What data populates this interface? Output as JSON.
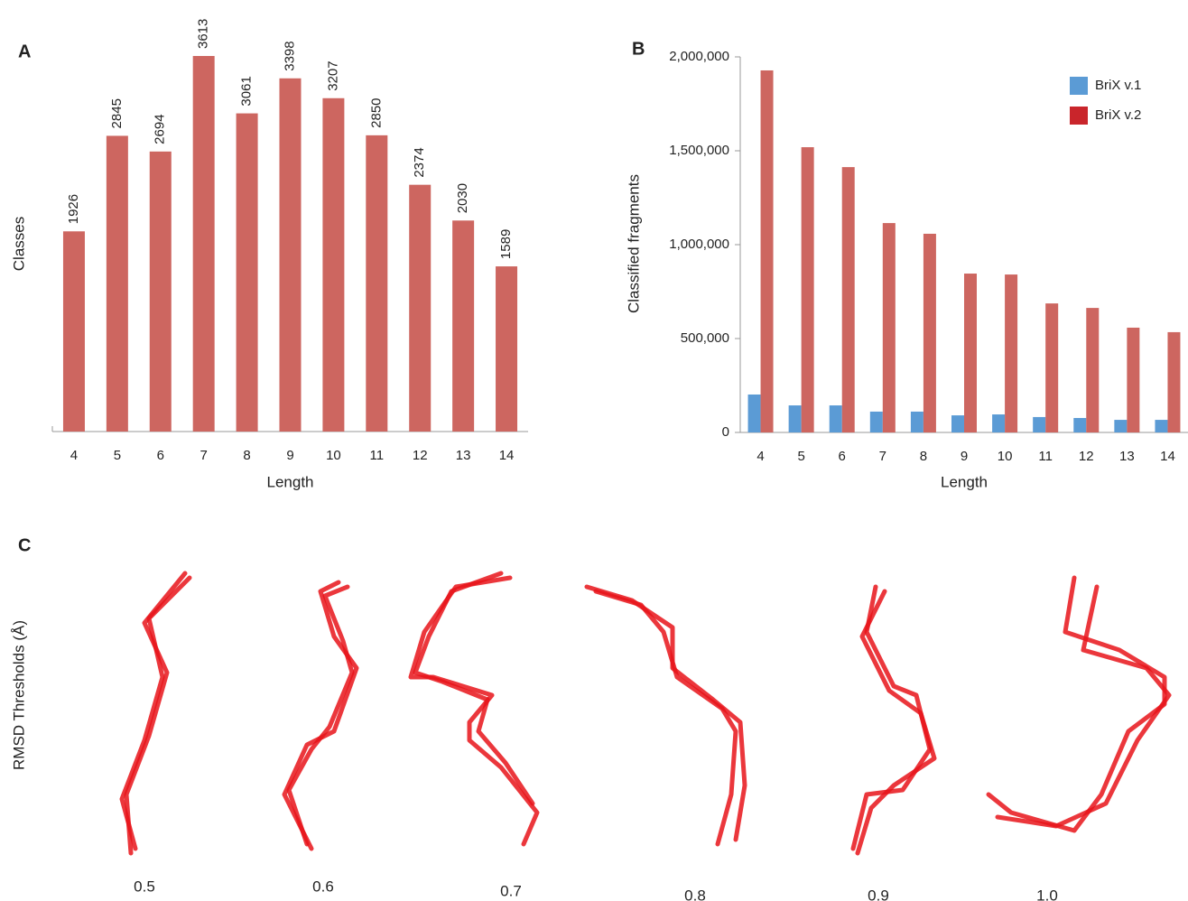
{
  "chart_data": [
    {
      "type": "bar",
      "panel": "A",
      "y_label": "Classes",
      "x_label": "Length",
      "categories": [
        "4",
        "5",
        "6",
        "7",
        "8",
        "9",
        "10",
        "11",
        "12",
        "13",
        "14"
      ],
      "values": [
        1926,
        2845,
        2694,
        3613,
        3061,
        3398,
        3207,
        2850,
        2374,
        2030,
        1589
      ],
      "color": "#cd6660",
      "ylim": [
        0,
        3700
      ],
      "show_value_labels": true
    },
    {
      "type": "bar",
      "panel": "B",
      "y_label": "Classified fragments",
      "x_label": "Length",
      "categories": [
        "4",
        "5",
        "6",
        "7",
        "8",
        "9",
        "10",
        "11",
        "12",
        "13",
        "14"
      ],
      "series": [
        {
          "name": "BriX v.1",
          "color": "#5b9bd5",
          "values": [
            202000,
            144000,
            144000,
            111000,
            111000,
            91000,
            96000,
            82000,
            77000,
            67000,
            67000
          ]
        },
        {
          "name": "BriX v.2",
          "color": "#cd6660",
          "legend_color": "#c9252b",
          "values": [
            1928000,
            1519000,
            1413000,
            1115000,
            1058000,
            846000,
            841000,
            687000,
            663000,
            558000,
            534000
          ]
        }
      ],
      "ylim": [
        0,
        2000000
      ],
      "yticks": [
        0,
        {
          "value": 500000,
          "label": "500,000"
        },
        {
          "value": 1000000,
          "label": "1,000,000"
        },
        {
          "value": 1500000,
          "label": "1,500,000"
        },
        {
          "value": 2000000,
          "label": "2,000,000"
        }
      ],
      "legend": "top-right"
    }
  ],
  "panel_c": {
    "panel": "C",
    "y_label": "RMSD Thresholds (Å)",
    "labels": [
      "0.5",
      "0.6",
      "0.7",
      "0.8",
      "0.9",
      "1.0"
    ]
  }
}
